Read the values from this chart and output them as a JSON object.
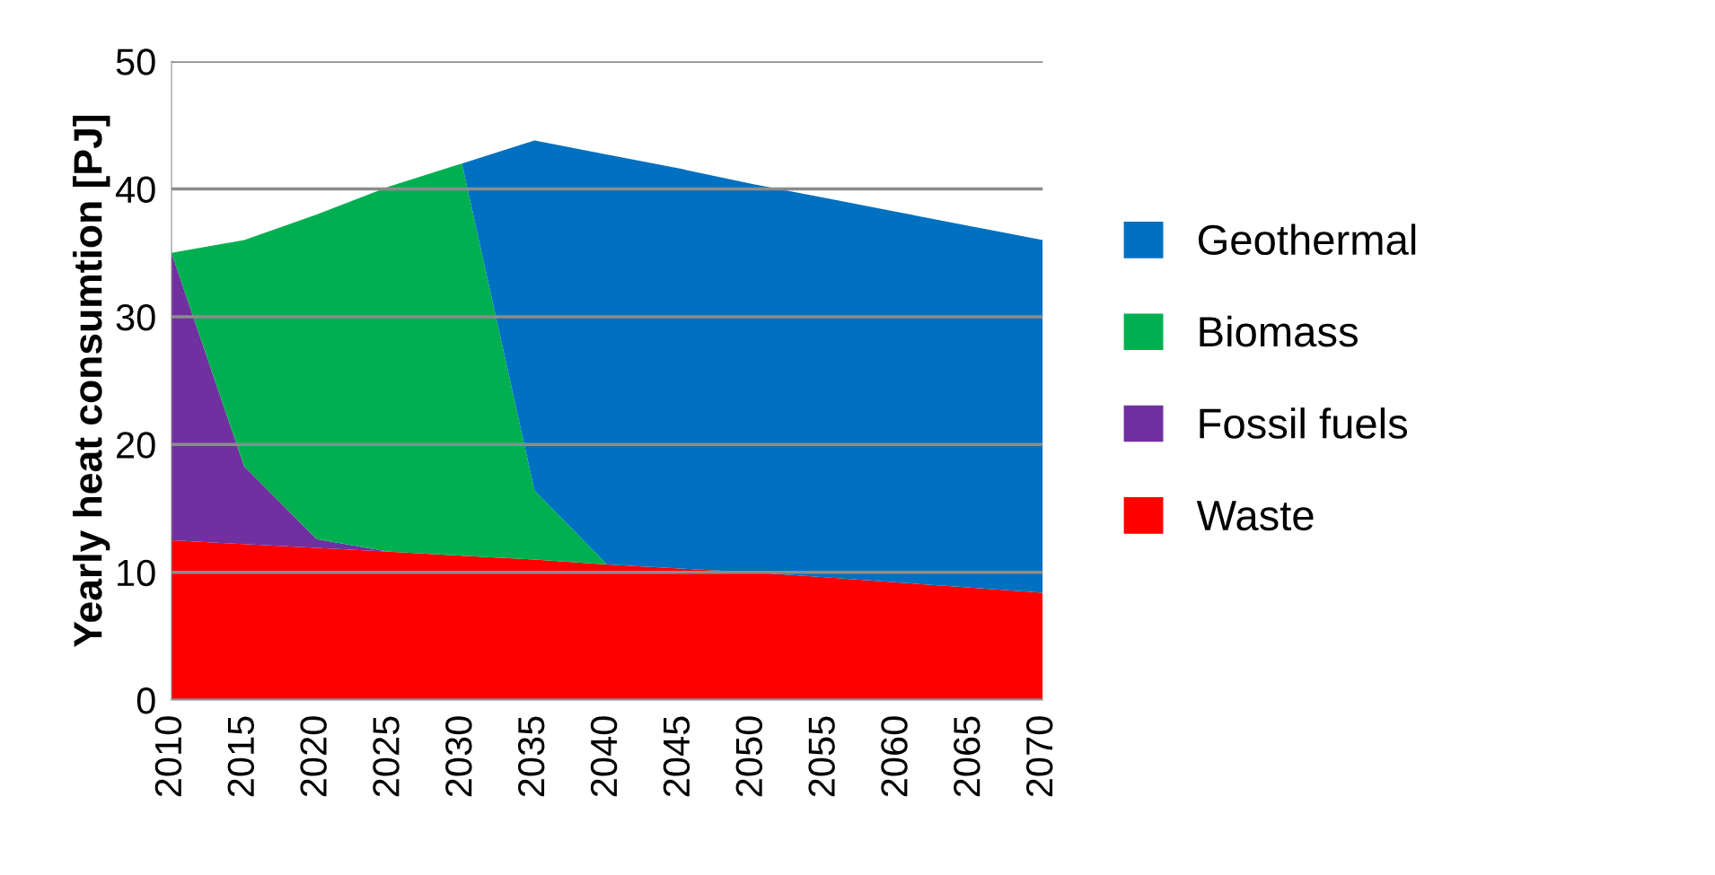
{
  "chart_data": {
    "type": "area",
    "stacked": true,
    "ylabel": "Yearly heat consumtion [PJ]",
    "categories": [
      "2010",
      "2015",
      "2020",
      "2025",
      "2030",
      "2035",
      "2040",
      "2045",
      "2050",
      "2055",
      "2060",
      "2065",
      "2070"
    ],
    "series": [
      {
        "name": "Waste",
        "color": "#ff0000",
        "values": [
          12.5,
          12.2,
          11.9,
          11.6,
          11.3,
          11.0,
          10.6,
          10.3,
          10.0,
          9.6,
          9.2,
          8.8,
          8.4
        ]
      },
      {
        "name": "Fossil fuels",
        "color": "#7030a0",
        "values": [
          22.5,
          6.1,
          0.7,
          0,
          0,
          0,
          0,
          0,
          0,
          0,
          0,
          0,
          0
        ]
      },
      {
        "name": "Biomass",
        "color": "#00b050",
        "values": [
          0,
          17.7,
          25.4,
          28.6,
          30.7,
          5.4,
          0,
          0,
          0,
          0,
          0,
          0,
          0
        ]
      },
      {
        "name": "Geothermal",
        "color": "#0070c0",
        "values": [
          0,
          0,
          0,
          0,
          0,
          27.4,
          32.1,
          31.3,
          30.4,
          29.7,
          29.0,
          28.3,
          27.6
        ]
      }
    ],
    "ylim": [
      0,
      50
    ],
    "yticks": [
      0,
      10,
      20,
      30,
      40,
      50
    ],
    "grid": "y",
    "legend": "right"
  }
}
